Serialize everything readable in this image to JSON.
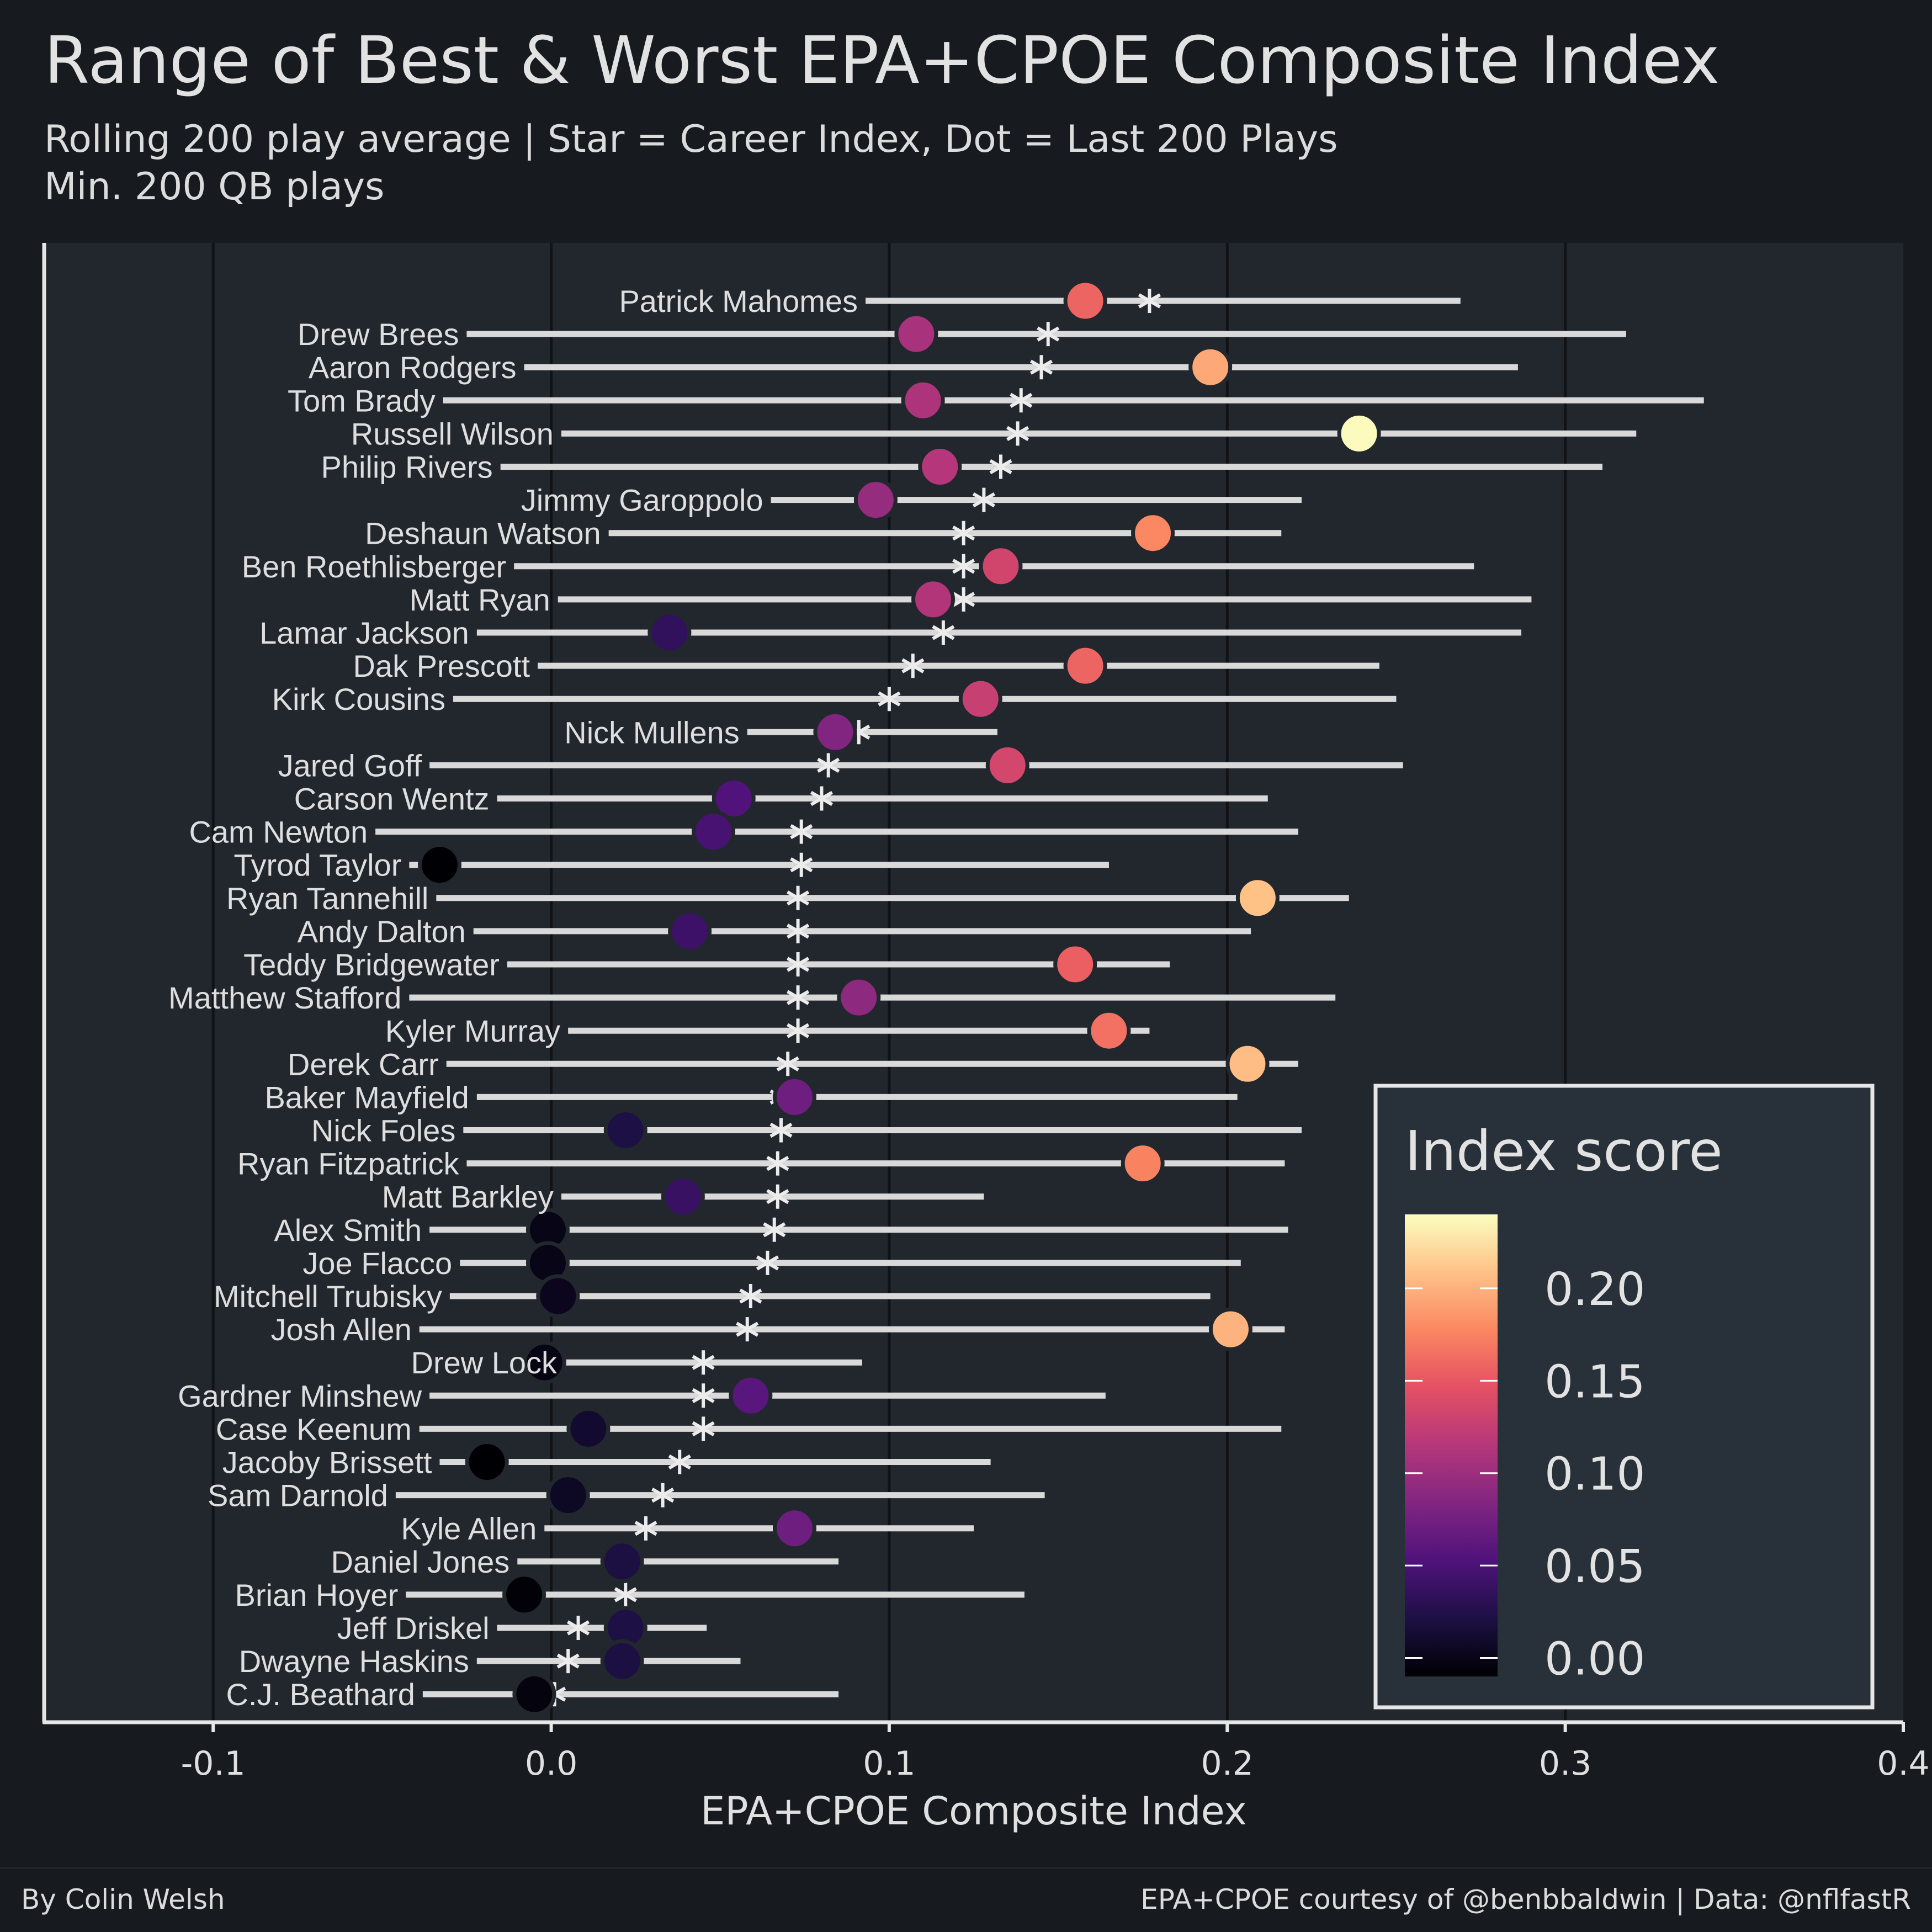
{
  "title": "Range of Best & Worst EPA+CPOE Composite Index",
  "subtitle_line1": "Rolling 200 play average | Star = Career Index, Dot = Last 200 Plays",
  "subtitle_line2": "Min. 200 QB plays",
  "caption_left": "By Colin Welsh",
  "caption_right": "EPA+CPOE courtesy of @benbbaldwin | Data: @nflfastR",
  "colors": {
    "background": "#171b20",
    "panel": "#22272e",
    "range_line": "#d9d9d9",
    "gridline": "#101215",
    "colormap": [
      "#000004",
      "#1c1044",
      "#4f127b",
      "#812581",
      "#b5367a",
      "#e55064",
      "#fb8761",
      "#fec287",
      "#fcfdbf"
    ]
  },
  "chart_data": {
    "type": "dot-range",
    "xlabel": "EPA+CPOE Composite Index",
    "xlim": [
      -0.15,
      0.4
    ],
    "xticks": [
      -0.1,
      0.0,
      0.1,
      0.2,
      0.3,
      0.4
    ],
    "xtick_labels": [
      "-0.1",
      "0.0",
      "0.1",
      "0.2",
      "0.3",
      "0.4"
    ],
    "grid": "vertical major",
    "legend": {
      "title": "Index score",
      "position": "bottom-right",
      "range": [
        -0.01,
        0.24
      ],
      "ticks": [
        0.0,
        0.05,
        0.1,
        0.15,
        0.2
      ],
      "tick_labels": [
        "0.00",
        "0.05",
        "0.10",
        "0.15",
        "0.20"
      ]
    },
    "players": [
      {
        "name": "Patrick Mahomes",
        "min": 0.093,
        "max": 0.269,
        "career": 0.177,
        "last": 0.158
      },
      {
        "name": "Drew Brees",
        "min": -0.025,
        "max": 0.318,
        "career": 0.147,
        "last": 0.108
      },
      {
        "name": "Aaron Rodgers",
        "min": -0.008,
        "max": 0.286,
        "career": 0.145,
        "last": 0.195
      },
      {
        "name": "Tom Brady",
        "min": -0.032,
        "max": 0.341,
        "career": 0.139,
        "last": 0.11
      },
      {
        "name": "Russell Wilson",
        "min": 0.003,
        "max": 0.321,
        "career": 0.138,
        "last": 0.239
      },
      {
        "name": "Philip Rivers",
        "min": -0.015,
        "max": 0.311,
        "career": 0.133,
        "last": 0.115
      },
      {
        "name": "Jimmy Garoppolo",
        "min": 0.065,
        "max": 0.222,
        "career": 0.128,
        "last": 0.096
      },
      {
        "name": "Deshaun Watson",
        "min": 0.017,
        "max": 0.216,
        "career": 0.122,
        "last": 0.178
      },
      {
        "name": "Ben Roethlisberger",
        "min": -0.011,
        "max": 0.273,
        "career": 0.122,
        "last": 0.133
      },
      {
        "name": "Matt Ryan",
        "min": 0.002,
        "max": 0.29,
        "career": 0.122,
        "last": 0.113
      },
      {
        "name": "Lamar Jackson",
        "min": -0.022,
        "max": 0.287,
        "career": 0.116,
        "last": 0.035
      },
      {
        "name": "Dak Prescott",
        "min": -0.004,
        "max": 0.245,
        "career": 0.107,
        "last": 0.158
      },
      {
        "name": "Kirk Cousins",
        "min": -0.029,
        "max": 0.25,
        "career": 0.1,
        "last": 0.127
      },
      {
        "name": "Nick Mullens",
        "min": 0.058,
        "max": 0.132,
        "career": 0.091,
        "last": 0.084
      },
      {
        "name": "Jared Goff",
        "min": -0.036,
        "max": 0.252,
        "career": 0.082,
        "last": 0.135
      },
      {
        "name": "Carson Wentz",
        "min": -0.016,
        "max": 0.212,
        "career": 0.08,
        "last": 0.054
      },
      {
        "name": "Cam Newton",
        "min": -0.052,
        "max": 0.221,
        "career": 0.074,
        "last": 0.048
      },
      {
        "name": "Tyrod Taylor",
        "min": -0.042,
        "max": 0.165,
        "career": 0.074,
        "last": -0.033
      },
      {
        "name": "Ryan Tannehill",
        "min": -0.034,
        "max": 0.236,
        "career": 0.073,
        "last": 0.209
      },
      {
        "name": "Andy Dalton",
        "min": -0.023,
        "max": 0.207,
        "career": 0.073,
        "last": 0.041
      },
      {
        "name": "Teddy Bridgewater",
        "min": -0.013,
        "max": 0.183,
        "career": 0.073,
        "last": 0.155
      },
      {
        "name": "Matthew Stafford",
        "min": -0.042,
        "max": 0.232,
        "career": 0.073,
        "last": 0.091
      },
      {
        "name": "Kyler Murray",
        "min": 0.005,
        "max": 0.177,
        "career": 0.073,
        "last": 0.165
      },
      {
        "name": "Derek Carr",
        "min": -0.031,
        "max": 0.221,
        "career": 0.07,
        "last": 0.206
      },
      {
        "name": "Baker Mayfield",
        "min": -0.022,
        "max": 0.203,
        "career": 0.068,
        "last": 0.072
      },
      {
        "name": "Nick Foles",
        "min": -0.026,
        "max": 0.222,
        "career": 0.068,
        "last": 0.022
      },
      {
        "name": "Ryan Fitzpatrick",
        "min": -0.025,
        "max": 0.217,
        "career": 0.067,
        "last": 0.175
      },
      {
        "name": "Matt Barkley",
        "min": 0.003,
        "max": 0.128,
        "career": 0.067,
        "last": 0.039
      },
      {
        "name": "Alex Smith",
        "min": -0.036,
        "max": 0.218,
        "career": 0.066,
        "last": -0.001
      },
      {
        "name": "Joe Flacco",
        "min": -0.027,
        "max": 0.204,
        "career": 0.064,
        "last": -0.001
      },
      {
        "name": "Mitchell Trubisky",
        "min": -0.03,
        "max": 0.195,
        "career": 0.059,
        "last": 0.002
      },
      {
        "name": "Josh Allen",
        "min": -0.039,
        "max": 0.217,
        "career": 0.058,
        "last": 0.201
      },
      {
        "name": "Drew Lock",
        "min": 0.004,
        "max": 0.092,
        "career": 0.045,
        "last": -0.002
      },
      {
        "name": "Gardner Minshew",
        "min": -0.036,
        "max": 0.164,
        "career": 0.045,
        "last": 0.059
      },
      {
        "name": "Case Keenum",
        "min": -0.039,
        "max": 0.216,
        "career": 0.045,
        "last": 0.011
      },
      {
        "name": "Jacoby Brissett",
        "min": -0.033,
        "max": 0.13,
        "career": 0.038,
        "last": -0.019
      },
      {
        "name": "Sam Darnold",
        "min": -0.046,
        "max": 0.146,
        "career": 0.033,
        "last": 0.005
      },
      {
        "name": "Kyle Allen",
        "min": -0.002,
        "max": 0.125,
        "career": 0.028,
        "last": 0.072
      },
      {
        "name": "Daniel Jones",
        "min": -0.01,
        "max": 0.085,
        "career": 0.023,
        "last": 0.021
      },
      {
        "name": "Brian Hoyer",
        "min": -0.043,
        "max": 0.14,
        "career": 0.022,
        "last": -0.008
      },
      {
        "name": "Jeff Driskel",
        "min": -0.016,
        "max": 0.046,
        "career": 0.008,
        "last": 0.022
      },
      {
        "name": "Dwayne Haskins",
        "min": -0.022,
        "max": 0.056,
        "career": 0.005,
        "last": 0.021
      },
      {
        "name": "C.J. Beathard",
        "min": -0.038,
        "max": 0.085,
        "career": 0.001,
        "last": -0.005
      }
    ]
  }
}
